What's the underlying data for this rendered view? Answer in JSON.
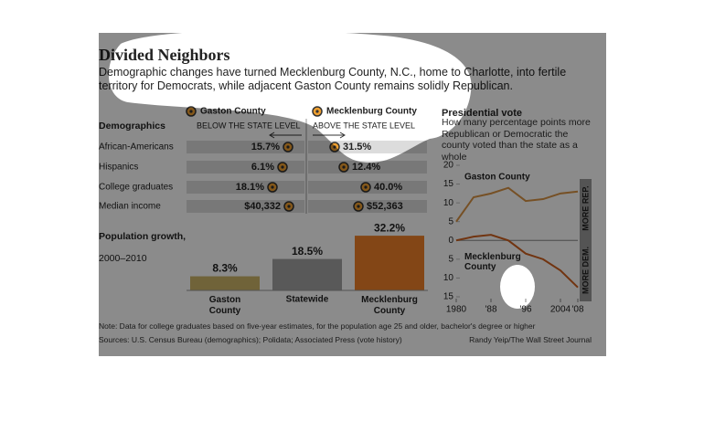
{
  "title": "Divided Neighbors",
  "subtitle": "Demographic changes have turned Mecklenburg County, N.C., home to Charlotte, into fertile territory for Democrats, while adjacent Gaston County remains solidly Republican.",
  "note": "Note: Data for college graduates based on five-year estimates, for the population age 25 and older, bachelor's degree or higher",
  "sources": "Sources: U.S. Census Bureau (demographics); Polidata; Associated Press (vote history)",
  "credit": "Randy Yeip/The Wall Street Journal",
  "chart_data": [
    {
      "type": "dot",
      "title": "Demographics",
      "left_label": "BELOW THE STATE LEVEL",
      "right_label": "ABOVE THE STATE LEVEL",
      "categories": [
        "African-Americans",
        "Hispanics",
        "College graduates",
        "Median income"
      ],
      "series": [
        {
          "name": "Gaston County",
          "color": "#f0a030",
          "values": [
            15.7,
            6.1,
            18.1,
            40332
          ],
          "value_labels": [
            "15.7%",
            "6.1%",
            "18.1%",
            "$40,332"
          ]
        },
        {
          "name": "Mecklenburg County",
          "color": "#f0a030",
          "values": [
            31.5,
            12.4,
            40.0,
            52363
          ],
          "value_labels": [
            "31.5%",
            "12.4%",
            "40.0%",
            "$52,363"
          ]
        }
      ]
    },
    {
      "type": "bar",
      "title": "Population growth,",
      "subtitle": "2000–2010",
      "categories": [
        "Gaston County",
        "Statewide",
        "Mecklenburg County"
      ],
      "values": [
        8.3,
        18.5,
        32.2
      ],
      "value_labels": [
        "8.3%",
        "18.5%",
        "32.2%"
      ],
      "colors": [
        "#cdb66a",
        "#a3a3a3",
        "#f0802a"
      ]
    },
    {
      "type": "line",
      "title": "Presidential vote",
      "subtitle": "How many percentage points more Republican or Democratic the county voted than the state as a whole",
      "x": [
        1980,
        1984,
        1988,
        1992,
        1996,
        2000,
        2004,
        2008
      ],
      "series": [
        {
          "name": "Gaston County",
          "color": "#d99445",
          "values": [
            5,
            11.5,
            12.5,
            14,
            10.5,
            11,
            12.5,
            13
          ]
        },
        {
          "name": "Mecklenburg County",
          "color": "#d0601e",
          "values": [
            0,
            1,
            1.5,
            0,
            -3.5,
            -5,
            -8,
            -12.5
          ]
        }
      ],
      "xlim": [
        1980,
        2008
      ],
      "xticks": [
        {
          "value": 1980,
          "label": "1980"
        },
        {
          "value": 1988,
          "label": "'88"
        },
        {
          "value": 1996,
          "label": "'96"
        },
        {
          "value": 2004,
          "label": "2004"
        },
        {
          "value": 2008,
          "label": "'08"
        }
      ],
      "ylim": [
        -15,
        20
      ],
      "yticks": [
        20,
        15,
        10,
        5,
        0,
        {
          "value": -5,
          "label": "5"
        },
        {
          "value": -10,
          "label": "10"
        },
        {
          "value": -15,
          "label": "15"
        }
      ],
      "axis_labels": [
        "MORE REP.",
        "MORE DEM."
      ],
      "grid": false
    }
  ]
}
